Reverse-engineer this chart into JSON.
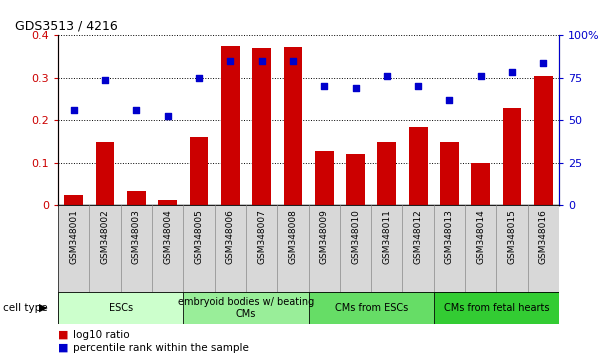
{
  "title": "GDS3513 / 4216",
  "samples": [
    "GSM348001",
    "GSM348002",
    "GSM348003",
    "GSM348004",
    "GSM348005",
    "GSM348006",
    "GSM348007",
    "GSM348008",
    "GSM348009",
    "GSM348010",
    "GSM348011",
    "GSM348012",
    "GSM348013",
    "GSM348014",
    "GSM348015",
    "GSM348016"
  ],
  "log10_ratio": [
    0.025,
    0.148,
    0.033,
    0.012,
    0.16,
    0.375,
    0.37,
    0.372,
    0.128,
    0.12,
    0.15,
    0.185,
    0.148,
    0.1,
    0.228,
    0.305
  ],
  "percentile_rank_right": [
    56.25,
    73.75,
    56.25,
    52.5,
    75.0,
    85.0,
    85.0,
    85.0,
    70.5,
    68.75,
    76.25,
    70.0,
    62.0,
    76.25,
    78.75,
    83.75
  ],
  "bar_color": "#cc0000",
  "dot_color": "#0000cc",
  "ylim_left": [
    0,
    0.4
  ],
  "ylim_right": [
    0,
    100
  ],
  "yticks_left": [
    0,
    0.1,
    0.2,
    0.3,
    0.4
  ],
  "yticks_right": [
    0,
    25,
    50,
    75,
    100
  ],
  "ytick_labels_left": [
    "0",
    "0.1",
    "0.2",
    "0.3",
    "0.4"
  ],
  "ytick_labels_right": [
    "0",
    "25",
    "50",
    "75",
    "100%"
  ],
  "cell_type_groups": [
    {
      "label": "ESCs",
      "start": 0,
      "end": 3,
      "color": "#ccffcc"
    },
    {
      "label": "embryoid bodies w/ beating\nCMs",
      "start": 4,
      "end": 7,
      "color": "#99ee99"
    },
    {
      "label": "CMs from ESCs",
      "start": 8,
      "end": 11,
      "color": "#66dd66"
    },
    {
      "label": "CMs from fetal hearts",
      "start": 12,
      "end": 15,
      "color": "#33cc33"
    }
  ],
  "cell_type_label": "cell type",
  "legend_items": [
    {
      "label": "log10 ratio",
      "color": "#cc0000"
    },
    {
      "label": "percentile rank within the sample",
      "color": "#0000cc"
    }
  ],
  "tick_label_color_left": "#cc0000",
  "tick_label_color_right": "#0000cc",
  "xtick_bg_color": "#d8d8d8",
  "xtick_border_color": "#888888"
}
